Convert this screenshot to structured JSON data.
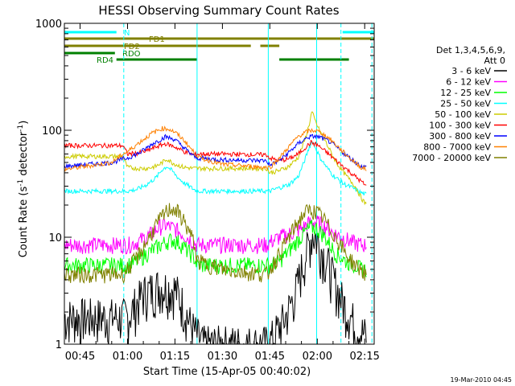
{
  "chart_data": {
    "type": "line",
    "title": "HESSI Observing Summary Count Rates",
    "xlabel": "Start Time (15-Apr-05 00:40:02)",
    "ylabel_main": "Count Rate (s",
    "ylabel_sup1": "-1",
    "ylabel_mid": " detector",
    "ylabel_sup2": "-1",
    "ylabel_end": ")",
    "yscale": "log",
    "ylim": [
      1,
      1000
    ],
    "xlim_minutes": [
      40.03,
      138
    ],
    "x_ticks": [
      {
        "m": 45,
        "label": "00:45"
      },
      {
        "m": 60,
        "label": "01:00"
      },
      {
        "m": 75,
        "label": "01:15"
      },
      {
        "m": 90,
        "label": "01:30"
      },
      {
        "m": 105,
        "label": "01:45"
      },
      {
        "m": 120,
        "label": "02:00"
      },
      {
        "m": 135,
        "label": "02:15"
      }
    ],
    "y_ticks": [
      {
        "v": 1,
        "label": "1"
      },
      {
        "v": 10,
        "label": "10"
      },
      {
        "v": 100,
        "label": "100"
      },
      {
        "v": 1000,
        "label": "1000"
      }
    ],
    "footer_timestamp": "19-Mar-2010 04:45",
    "legend_header_line1": "Det 1,3,4,5,6,9,",
    "legend_header_line2": "Att 0",
    "series": [
      {
        "name": "3 - 6 keV",
        "color": "#000000",
        "x": [
          40,
          52,
          57,
          58.5,
          60,
          62,
          65,
          70,
          75,
          78,
          80,
          82,
          84,
          88,
          95,
          100,
          104,
          105.5,
          107,
          110,
          113,
          115,
          117,
          118.5,
          120,
          122,
          124,
          126,
          128,
          130,
          132,
          134,
          135.5
        ],
        "y": [
          1.8,
          1.8,
          1.8,
          1.8,
          1.8,
          2.2,
          3,
          3.5,
          3.3,
          2.2,
          1.5,
          1.2,
          1.0,
          1.0,
          1.0,
          1.0,
          1.0,
          1.1,
          1.3,
          1.8,
          3,
          5,
          8,
          11,
          9.5,
          7,
          5,
          3.5,
          2.5,
          2,
          1.5,
          1.3,
          1.2
        ]
      },
      {
        "name": "6 - 12 keV",
        "color": "#ff00ff",
        "x": [
          40,
          55,
          57,
          58.5,
          60,
          63,
          67,
          70,
          72,
          75,
          78,
          81,
          82,
          90,
          104,
          105,
          108,
          112,
          115,
          117,
          119,
          121,
          123,
          125,
          128,
          131,
          134,
          135.5
        ],
        "y": [
          8.5,
          8.5,
          8.5,
          8.5,
          8.5,
          9,
          10.5,
          12.5,
          13,
          12,
          10.5,
          9,
          8.5,
          8.5,
          8.5,
          9,
          10,
          11,
          12,
          13.5,
          14,
          13.5,
          12.5,
          11,
          10,
          9,
          8.5,
          8.5
        ]
      },
      {
        "name": "12 - 25 keV",
        "color": "#00ff00",
        "x": [
          40,
          55,
          57,
          58.5,
          60,
          63,
          66,
          69,
          72,
          74,
          76,
          78,
          81,
          82,
          90,
          104,
          105,
          108,
          111,
          114,
          116,
          118,
          120,
          122,
          124,
          126,
          129,
          132,
          134,
          135.5
        ],
        "y": [
          5.5,
          5.5,
          5.5,
          5.5,
          5.5,
          6,
          7,
          8,
          9,
          9.5,
          9,
          8,
          6.5,
          5.5,
          5.5,
          5.5,
          5.5,
          6,
          7.5,
          9.5,
          11,
          12.5,
          12,
          10.5,
          8.5,
          7,
          6,
          5.5,
          5,
          5
        ]
      },
      {
        "name": "25 - 50 keV",
        "color": "#00ffff",
        "x": [
          40,
          55,
          57,
          58.5,
          60,
          63,
          66,
          69,
          71,
          72.5,
          74,
          76,
          78,
          81,
          82,
          90,
          104,
          105,
          108,
          111,
          114,
          116,
          117.5,
          118.5,
          119.5,
          121,
          123,
          125,
          128,
          131,
          134,
          135.5
        ],
        "y": [
          27,
          27,
          27,
          27,
          27,
          28,
          31,
          36,
          43,
          46,
          42,
          36,
          32,
          28,
          27,
          27,
          27,
          27,
          29,
          31,
          37,
          52,
          70,
          80,
          68,
          55,
          45,
          38,
          32,
          29,
          26,
          25
        ]
      },
      {
        "name": "50 - 100 keV",
        "color": "#cccc00",
        "x": [
          40,
          55,
          57,
          58.5,
          60,
          63,
          66,
          69,
          71,
          72.5,
          74,
          76,
          78,
          81,
          82,
          90,
          104,
          105,
          108,
          111,
          114,
          116,
          117.5,
          118.3,
          119,
          120,
          122,
          124,
          126,
          129,
          132,
          134,
          135.5
        ],
        "y": [
          57,
          57,
          57,
          57,
          45,
          44,
          44,
          46,
          50,
          54,
          50,
          47,
          45,
          44,
          44,
          44,
          44,
          40,
          42,
          46,
          56,
          80,
          115,
          150,
          130,
          110,
          85,
          65,
          50,
          38,
          30,
          23,
          20
        ]
      },
      {
        "name": "100 - 300 keV",
        "color": "#ff0000",
        "x": [
          40,
          55,
          57,
          58.5,
          60,
          63,
          66,
          69,
          72,
          75,
          78,
          81,
          82,
          90,
          104,
          105,
          108,
          111,
          114,
          116,
          118,
          120,
          123,
          126,
          129,
          132,
          134,
          135.5
        ],
        "y": [
          72,
          72,
          72,
          72,
          60,
          61,
          64,
          70,
          75,
          70,
          63,
          59,
          60,
          60,
          59,
          55,
          52,
          54,
          60,
          68,
          77,
          73,
          62,
          52,
          44,
          37,
          33,
          30
        ]
      },
      {
        "name": "300 - 800 keV",
        "color": "#0000ff",
        "x": [
          40,
          55,
          57,
          58.5,
          60,
          64,
          68,
          72,
          75,
          78,
          81,
          82,
          90,
          104,
          105,
          108,
          111,
          114,
          117,
          119,
          121,
          124,
          127,
          130,
          133,
          134,
          135.5
        ],
        "y": [
          46,
          50,
          52,
          54,
          55,
          62,
          75,
          87,
          82,
          68,
          57,
          55,
          53,
          52,
          47,
          52,
          62,
          75,
          86,
          88,
          86,
          78,
          66,
          56,
          48,
          46,
          45
        ]
      },
      {
        "name": "800 - 7000 keV",
        "color": "#ff8000",
        "x": [
          40,
          55,
          57,
          58.5,
          60,
          64,
          68,
          71,
          73,
          75,
          78,
          81,
          83,
          90,
          104,
          105,
          108,
          111,
          114,
          117,
          119,
          121,
          124,
          127,
          130,
          133,
          134,
          135.5
        ],
        "y": [
          43,
          50,
          55,
          60,
          63,
          78,
          95,
          104,
          103,
          96,
          80,
          62,
          55,
          48,
          45,
          45,
          55,
          70,
          88,
          98,
          100,
          96,
          83,
          68,
          56,
          47,
          45,
          43
        ]
      },
      {
        "name": "7000 - 20000 keV",
        "color": "#808000",
        "x": [
          40,
          55,
          57,
          58.5,
          60,
          63,
          66,
          69,
          72,
          74,
          76,
          78,
          81,
          82,
          90,
          104,
          105,
          108,
          111,
          114,
          116,
          118,
          120,
          122,
          124,
          126,
          129,
          132,
          134,
          135.5
        ],
        "y": [
          4.5,
          4.5,
          4.5,
          4.5,
          5,
          6.5,
          9,
          13,
          17,
          19,
          17,
          14,
          9,
          6,
          5,
          4.5,
          5,
          7,
          10,
          14,
          17,
          18,
          17,
          15,
          12,
          10,
          7,
          5.5,
          5,
          4.5
        ]
      }
    ],
    "flag_bars": [
      {
        "label": "N",
        "color": "#00ffff",
        "level": 0,
        "segments": [
          [
            40.03,
            56.5
          ],
          [
            128,
            138
          ]
        ]
      },
      {
        "label": "FD1",
        "color": "#808000",
        "level": 1,
        "segments": [
          [
            40.03,
            138
          ]
        ]
      },
      {
        "label": "FD2",
        "color": "#808000",
        "level": 2,
        "segments": [
          [
            40.03,
            99
          ],
          [
            102,
            108
          ]
        ]
      },
      {
        "label": "RDO",
        "color": "#008000",
        "level": 3,
        "segments": [
          [
            40.03,
            56
          ]
        ]
      },
      {
        "label": "RD4",
        "color": "#008000",
        "level": 4,
        "segments": [
          [
            56.5,
            82
          ],
          [
            108,
            130
          ]
        ]
      }
    ],
    "vertical_lines": [
      {
        "m": 58.8,
        "style": "dashed",
        "color": "#00ffff"
      },
      {
        "m": 82,
        "style": "solid",
        "color": "#00ffff"
      },
      {
        "m": 104.5,
        "style": "solid",
        "color": "#00ffff"
      },
      {
        "m": 119.8,
        "style": "solid",
        "color": "#00ffff"
      },
      {
        "m": 127.5,
        "style": "dashed",
        "color": "#00ffff"
      },
      {
        "m": 137.3,
        "style": "dashed",
        "color": "#00ffff"
      }
    ]
  }
}
